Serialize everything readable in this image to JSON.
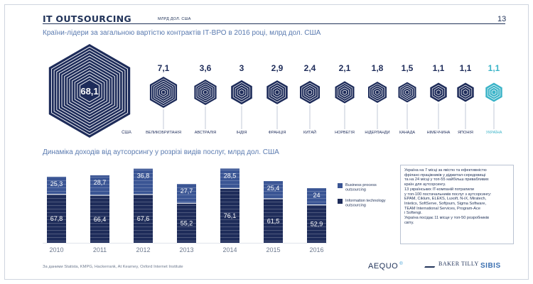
{
  "header": {
    "title": "IT OUTSOURCING",
    "subtitle": "МЛРД ДОЛ. США",
    "page_number": "13"
  },
  "sections": {
    "hexagons_title": "Країни-лідери за загальною вартістю контрактів ІТ-ВРО в 2016 році, млрд дол. США",
    "bars_title": "Динаміка доходів від аутсорсингу у розрізі видів послуг, млрд дол. США"
  },
  "colors": {
    "navy": "#1e2c5a",
    "bar_top": "#3a5594",
    "highlight": "#3cb4c8"
  },
  "chart_data": [
    {
      "type": "hexagon-bubbles",
      "categories": [
        "США",
        "ВЕЛИКОБРИТАНІЯ",
        "АВСТРАЛІЯ",
        "ІНДІЯ",
        "ФРАНЦІЯ",
        "КИТАЙ",
        "НОРВЕГІЯ",
        "НІДЕРЛАНДИ",
        "КАНАДА",
        "НІМЕЧЧИНА",
        "ЯПОНІЯ",
        "УКРАЇНА"
      ],
      "values": [
        68.1,
        7.1,
        3.6,
        3,
        2.9,
        2.4,
        2.1,
        1.8,
        1.5,
        1.1,
        1.1,
        1.1
      ],
      "value_labels": [
        "68,1",
        "7,1",
        "3,6",
        "3",
        "2,9",
        "2,4",
        "2,1",
        "1,8",
        "1,5",
        "1,1",
        "1,1",
        "1,1"
      ],
      "highlight": "УКРАЇНА"
    },
    {
      "type": "bar",
      "stacked": true,
      "categories": [
        "2010",
        "2011",
        "2012",
        "2013",
        "2014",
        "2015",
        "2016"
      ],
      "series": [
        {
          "name": "Information technology outsourcing",
          "values": [
            67.8,
            66.4,
            67.6,
            55.2,
            76.1,
            61.5,
            52.9
          ],
          "labels": [
            "67,8",
            "66,4",
            "67,6",
            "55,2",
            "76,1",
            "61,5",
            "52,9"
          ]
        },
        {
          "name": "Business process outsourcing",
          "values": [
            25.3,
            28.7,
            36.8,
            27.7,
            28.5,
            25.4,
            24
          ],
          "labels": [
            "25,3",
            "28,7",
            "36,8",
            "27,7",
            "28,5",
            "25,4",
            "24"
          ]
        }
      ],
      "legend": "right"
    }
  ],
  "note": [
    "Україна на 7 місці за якістю та ефективністю",
    "фріланс-працівників у діджитал-середовищі",
    "та на 24 місці у топ-55 найбільш привабливих",
    "країн для аутсорсингу.",
    "13 українських IT-компаній потрапили",
    "у топ-100 постачальників послуг з аутсорсингу:",
    "EPAM, Ciklum, ELEKS, Luxoft, N-iX, Miratech,",
    "Intetics, SoftServe, Softjourn, Sigma Software,",
    "TEAM International Services, Program-Ace",
    "і Softengi.",
    "Україна посідає 11 місце у топ-50 розробників",
    "світу."
  ],
  "source": "За даними Statista, KMPG, Hackerrank, At Kearney, Oxford Internet Institute",
  "logos": {
    "aequo": "AEQUO",
    "aequo_mark": "®",
    "baker_tilly": "BAKER TILLY",
    "sibis": "SIBIS"
  }
}
